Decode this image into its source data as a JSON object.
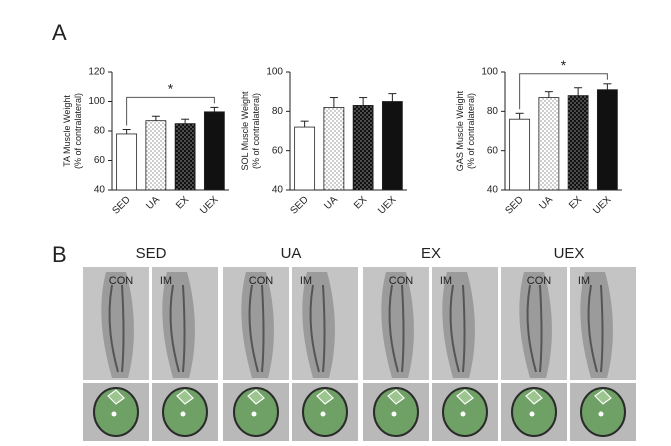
{
  "panel_a_label": "A",
  "panel_b_label": "B",
  "groups": [
    "SED",
    "UA",
    "EX",
    "UEX"
  ],
  "views": [
    "CON",
    "IM"
  ],
  "chart_data": [
    {
      "type": "bar",
      "y_label": [
        "TA Muscle Weight",
        "(% of contralateral)"
      ],
      "categories": [
        "SED",
        "UA",
        "EX",
        "UEX"
      ],
      "values": [
        78,
        87,
        85,
        93
      ],
      "errors": [
        3,
        3,
        3,
        3
      ],
      "bar_styles": [
        "white",
        "light-dots",
        "dark-dots",
        "black"
      ],
      "ylim": [
        40,
        120
      ],
      "yticks": [
        40,
        60,
        80,
        100,
        120
      ],
      "significance_label": "*"
    },
    {
      "type": "bar",
      "y_label": [
        "SOL Muscle Weight",
        "(% of contralateral)"
      ],
      "categories": [
        "SED",
        "UA",
        "EX",
        "UEX"
      ],
      "values": [
        72,
        82,
        83,
        85
      ],
      "errors": [
        3,
        5,
        4,
        4
      ],
      "bar_styles": [
        "white",
        "light-dots",
        "dark-dots",
        "black"
      ],
      "ylim": [
        40,
        100
      ],
      "yticks": [
        40,
        60,
        80,
        100
      ]
    },
    {
      "type": "bar",
      "y_label": [
        "GAS Muscle Weight",
        "(% of contralateral)"
      ],
      "categories": [
        "SED",
        "UA",
        "EX",
        "UEX"
      ],
      "values": [
        76,
        87,
        88,
        91
      ],
      "errors": [
        3,
        3,
        4,
        3
      ],
      "bar_styles": [
        "white",
        "light-dots",
        "dark-dots",
        "black"
      ],
      "ylim": [
        40,
        100
      ],
      "yticks": [
        40,
        60,
        80,
        100
      ],
      "significance_label": "*"
    }
  ]
}
